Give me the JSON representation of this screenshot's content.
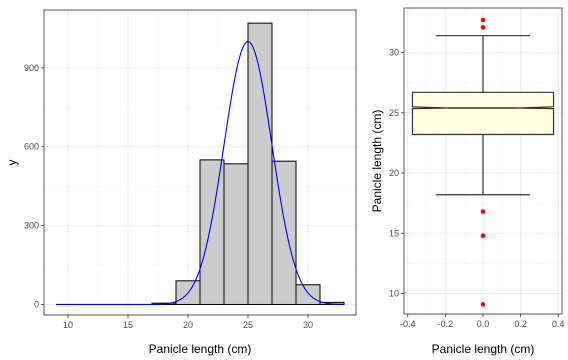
{
  "colors": {
    "bar_fill": "#cccccc",
    "bar_stroke": "#000000",
    "density_curve": "#0000ff",
    "box_fill": "#ffffe0",
    "outlier": "#ff0000",
    "grid_major": "#ebebeb",
    "grid_minor": "#f5f5f5",
    "panel_border": "#333333"
  },
  "chart_data": [
    {
      "type": "bar",
      "subtype": "histogram-with-normal-curve",
      "xlabel": "Panicle length (cm)",
      "ylabel": "y",
      "xlim": [
        8,
        34
      ],
      "ylim": [
        -40,
        1120
      ],
      "x_ticks": [
        10,
        15,
        20,
        25,
        30
      ],
      "y_ticks": [
        0,
        300,
        600,
        900
      ],
      "grid": true,
      "bins": [
        {
          "from": 17,
          "to": 19,
          "count": 5
        },
        {
          "from": 19,
          "to": 21,
          "count": 90
        },
        {
          "from": 21,
          "to": 23,
          "count": 550
        },
        {
          "from": 23,
          "to": 25,
          "count": 535
        },
        {
          "from": 25,
          "to": 27,
          "count": 1070
        },
        {
          "from": 27,
          "to": 29,
          "count": 545
        },
        {
          "from": 29,
          "to": 31,
          "count": 75
        },
        {
          "from": 31,
          "to": 33,
          "count": 8
        }
      ],
      "curve": {
        "mean": 25.0,
        "sd": 2.0,
        "peak": 1000,
        "x_from": 9,
        "x_to": 33
      }
    },
    {
      "type": "box",
      "xlabel": "Panicle length (cm)",
      "ylabel": "Panicle length (cm)",
      "xlim": [
        -0.42,
        0.42
      ],
      "ylim": [
        8.3,
        33.7
      ],
      "x_ticks": [
        -0.4,
        -0.2,
        0.0,
        0.2,
        0.4
      ],
      "y_ticks": [
        10,
        15,
        20,
        25,
        30
      ],
      "x_tick_labels": [
        "-0.4",
        "-0.2",
        "0.0",
        "0.2",
        "0.4"
      ],
      "grid": true,
      "notch": true,
      "box_half_width": 0.375,
      "whisker_half_width": 0.25,
      "q1": 23.2,
      "median": 25.4,
      "q3": 26.7,
      "notch_low": 25.35,
      "notch_high": 25.5,
      "whisker_low": 18.2,
      "whisker_high": 31.4,
      "outliers": [
        32.7,
        32.1,
        16.8,
        14.8,
        9.1
      ]
    }
  ]
}
